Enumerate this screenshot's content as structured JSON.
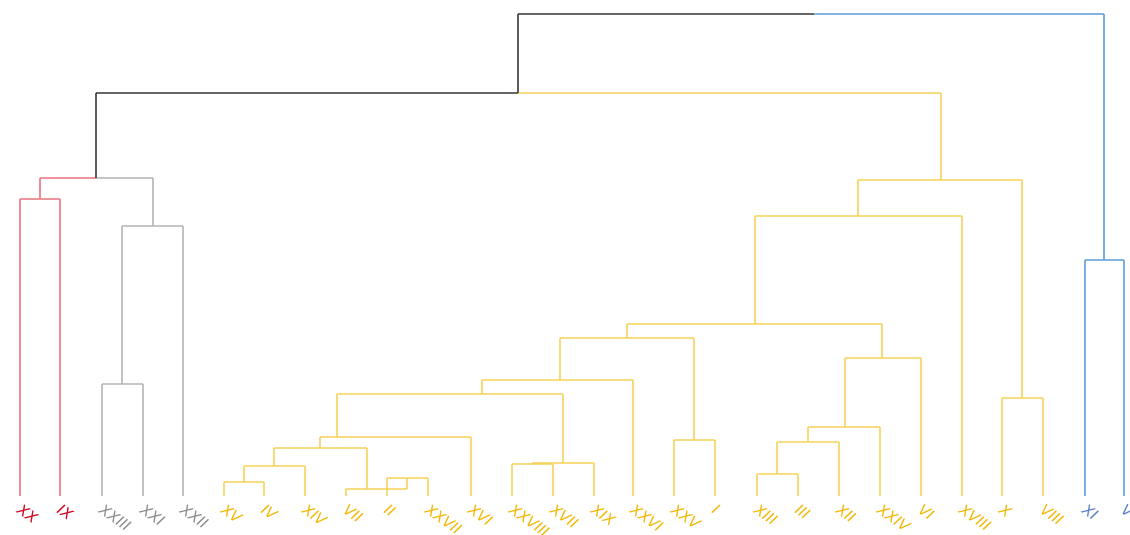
{
  "chart_data": {
    "type": "dendrogram",
    "leaves": [
      {
        "label": "XX",
        "color": "#d0021b"
      },
      {
        "label": "IX",
        "color": "#d0021b"
      },
      {
        "label": "XXIII",
        "color": "#8c8c8c"
      },
      {
        "label": "XXI",
        "color": "#8c8c8c"
      },
      {
        "label": "XXII",
        "color": "#8c8c8c"
      },
      {
        "label": "XV",
        "color": "#f2b705"
      },
      {
        "label": "IV",
        "color": "#f2b705"
      },
      {
        "label": "XIV",
        "color": "#f2b705"
      },
      {
        "label": "VII",
        "color": "#f2b705"
      },
      {
        "label": "II",
        "color": "#f2b705"
      },
      {
        "label": "XXVII",
        "color": "#f2b705"
      },
      {
        "label": "XVI",
        "color": "#f2b705"
      },
      {
        "label": "XXVIII",
        "color": "#f2b705"
      },
      {
        "label": "XVII",
        "color": "#f2b705"
      },
      {
        "label": "XIX",
        "color": "#f2b705"
      },
      {
        "label": "XXVI",
        "color": "#f2b705"
      },
      {
        "label": "XXV",
        "color": "#f2b705"
      },
      {
        "label": "I",
        "color": "#f2b705"
      },
      {
        "label": "XIII",
        "color": "#f2b705"
      },
      {
        "label": "III",
        "color": "#f2b705"
      },
      {
        "label": "XII",
        "color": "#f2b705"
      },
      {
        "label": "XXIV",
        "color": "#f2b705"
      },
      {
        "label": "VI",
        "color": "#f2b705"
      },
      {
        "label": "XVIII",
        "color": "#f2b705"
      },
      {
        "label": "X",
        "color": "#f2b705"
      },
      {
        "label": "VIII",
        "color": "#f2b705"
      },
      {
        "label": "XI",
        "color": "#5b7fc4"
      },
      {
        "label": "V",
        "color": "#5b7fc4"
      }
    ],
    "colors": {
      "root": "#333333",
      "red": "#e8707a",
      "gray": "#b3b3b3",
      "yellow": "#f6d257",
      "blue": "#5b9bd5"
    }
  }
}
